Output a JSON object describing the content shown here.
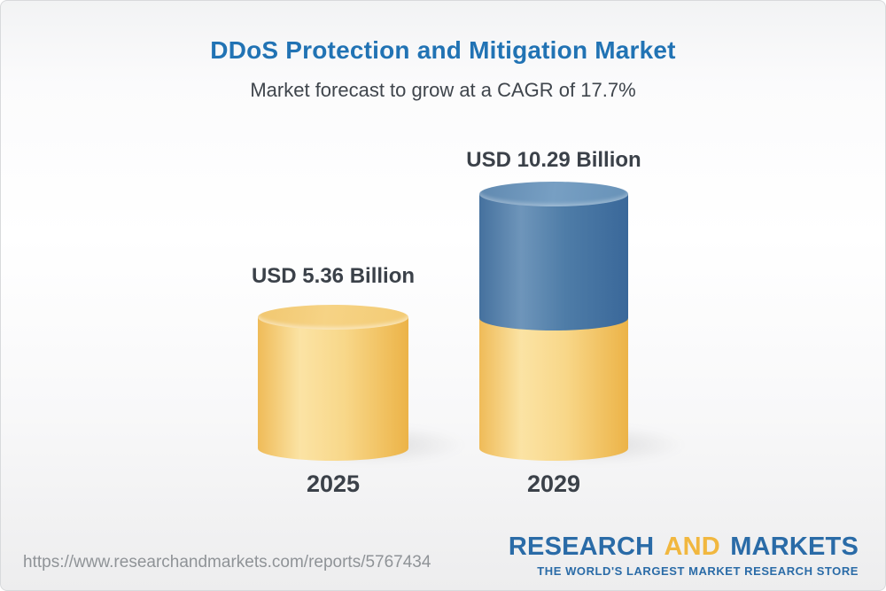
{
  "header": {
    "title": "DDoS Protection and Mitigation Market",
    "subtitle": "Market forecast to grow at a CAGR of 17.7%"
  },
  "chart_data": {
    "type": "bar",
    "style": "3d-cylinder",
    "categories": [
      "2025",
      "2029"
    ],
    "values": [
      5.36,
      10.29
    ],
    "unit": "USD Billion",
    "bar_labels": [
      "USD 5.36 Billion",
      "USD 10.29 Billion"
    ],
    "title": "DDoS Protection and Mitigation Market",
    "subtitle": "Market forecast to grow at a CAGR of 17.7%",
    "cagr_percent": 17.7,
    "axes_visible": false,
    "grid": false,
    "legend_position": "none",
    "bars": [
      {
        "category": "2025",
        "total": 5.36,
        "label": "USD 5.36 Billion",
        "segments": [
          {
            "value": 5.36,
            "color": "#f6cd79"
          }
        ]
      },
      {
        "category": "2029",
        "total": 10.29,
        "label": "USD 10.29 Billion",
        "segments": [
          {
            "value": 5.36,
            "color": "#f6cd79"
          },
          {
            "value": 4.93,
            "color": "#4d7ba6"
          }
        ]
      }
    ]
  },
  "footer": {
    "url": "https://www.researchandmarkets.com/reports/5767434",
    "logo": {
      "word1": "RESEARCH",
      "word2": "AND",
      "word3": "MARKETS",
      "tagline": "THE WORLD'S LARGEST MARKET RESEARCH STORE"
    }
  },
  "colors": {
    "title_blue": "#2173b4",
    "text_dark": "#3b4149",
    "url_gray": "#8f9397",
    "logo_blue": "#2a6ba7",
    "logo_gold": "#f1b73f",
    "bar_yellow": "#f6cd79",
    "bar_blue": "#4d7ba6",
    "background_top": "#f2f3f4",
    "background_bottom": "#ededee"
  }
}
